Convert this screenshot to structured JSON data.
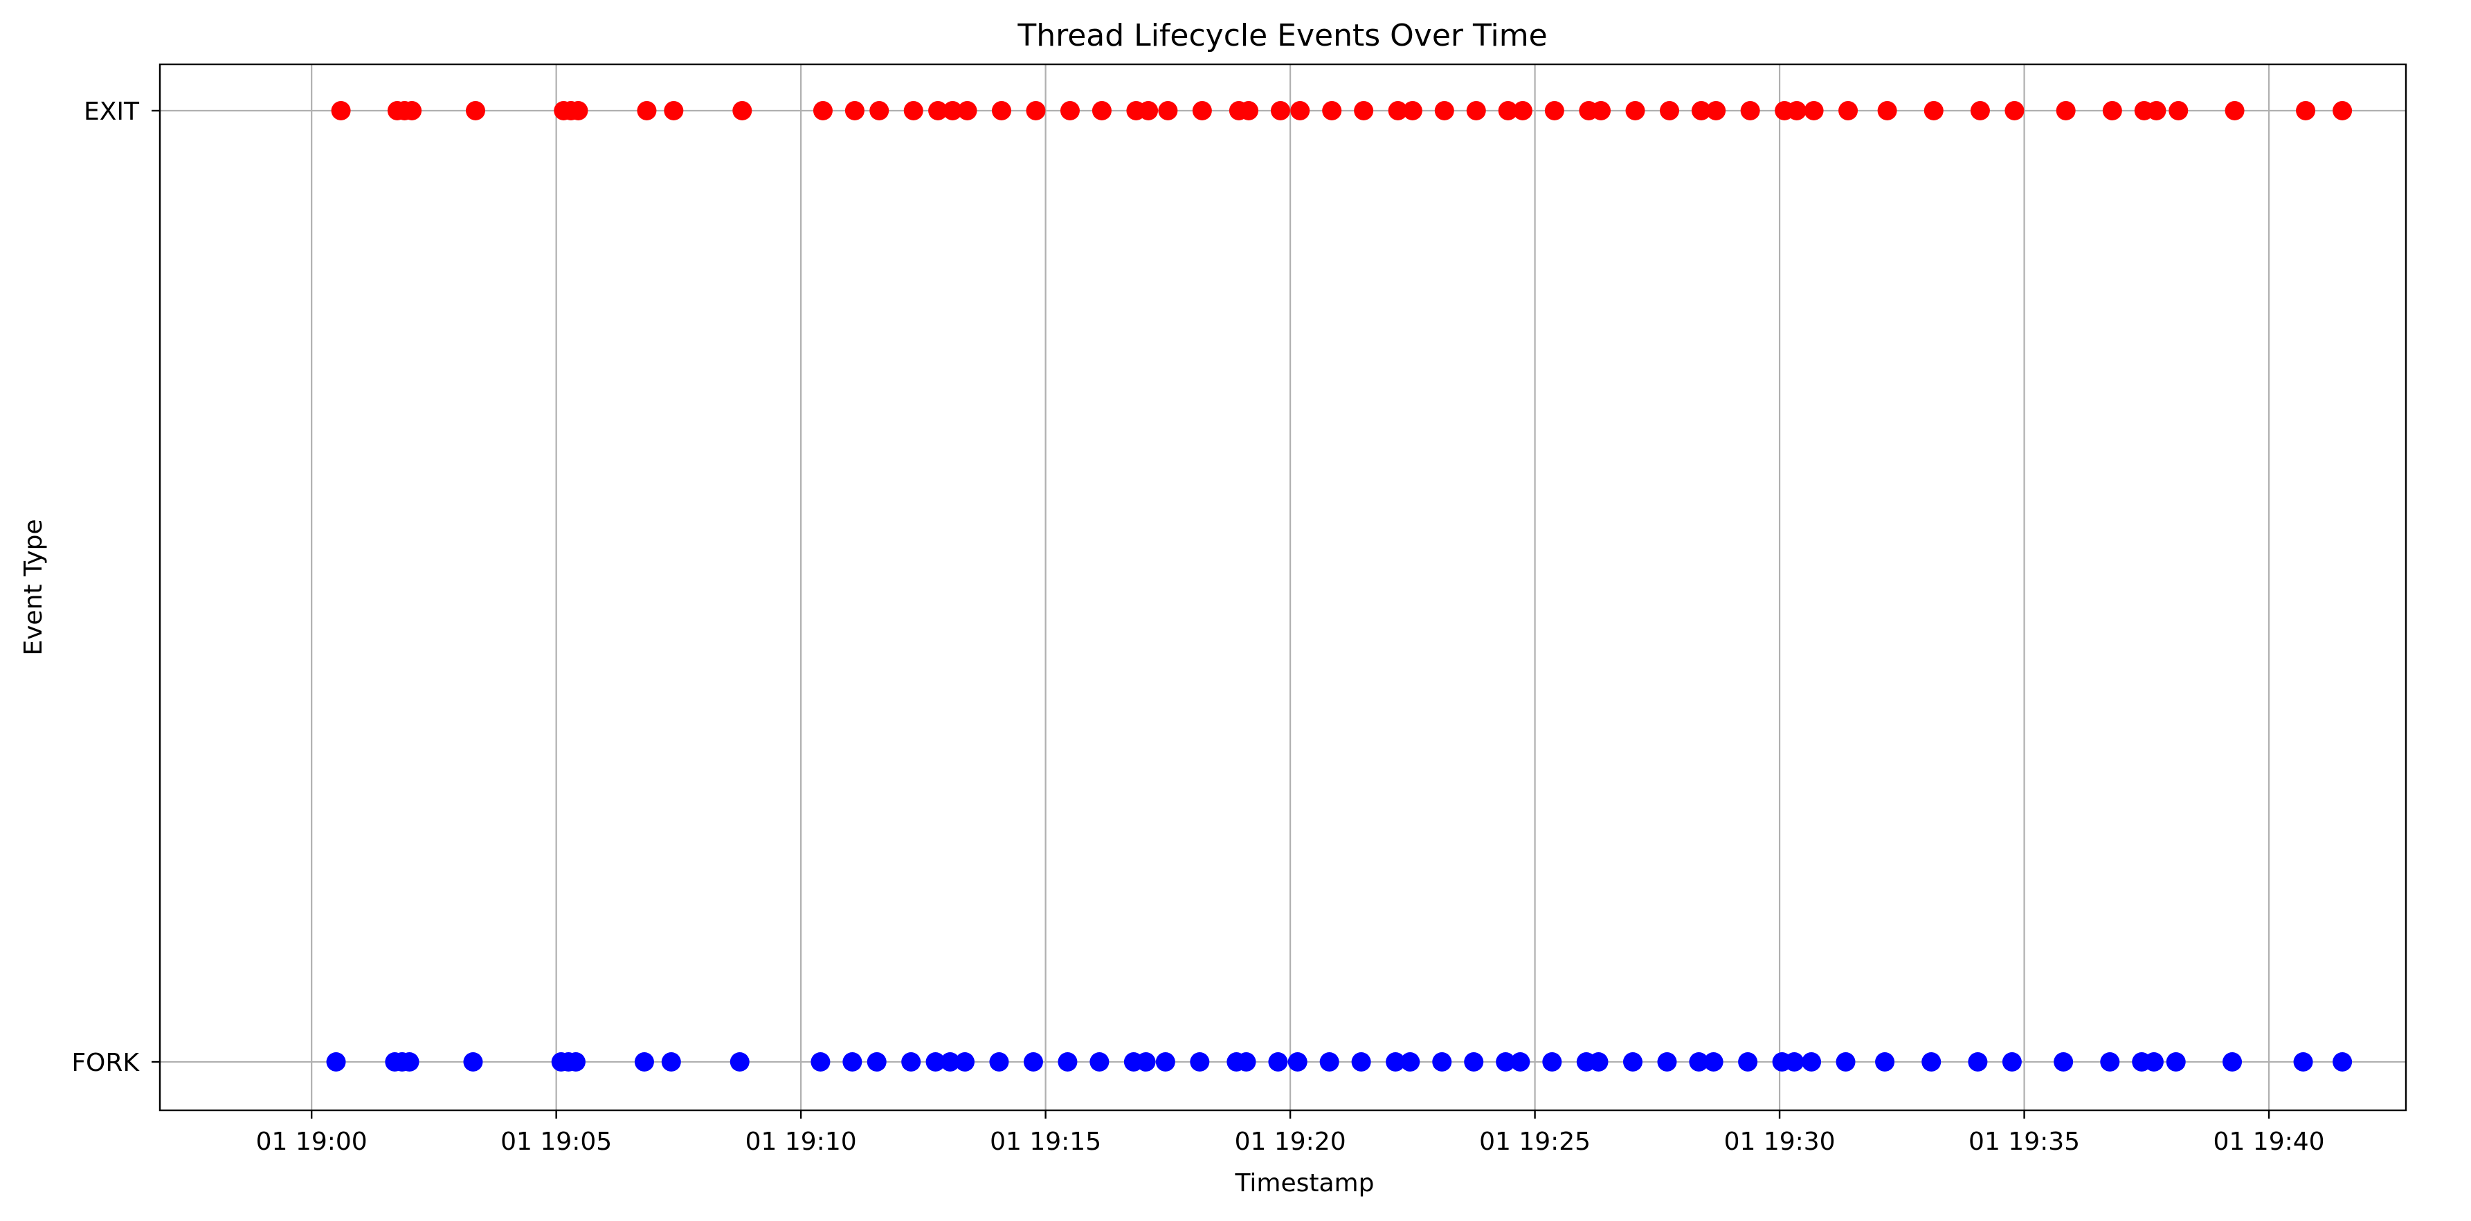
{
  "chart_data": {
    "type": "scatter",
    "title": "Thread Lifecycle Events Over Time",
    "xlabel": "Timestamp",
    "ylabel": "Event Type",
    "x_type": "time",
    "xlim": [
      "19:58:00",
      "20:08:00"
    ],
    "x_ticks": [
      "01 19:00",
      "01 19:05",
      "01 19:10",
      "01 19:15",
      "01 19:20",
      "01 19:25",
      "01 19:30",
      "01 19:35",
      "01 19:40"
    ],
    "y_categories": [
      "FORK",
      "EXIT"
    ],
    "grid": true,
    "series": [
      {
        "category": "EXIT",
        "color": "#ff0000",
        "x": [
          "19:00:36",
          "19:01:45",
          "19:01:54",
          "19:02:03",
          "19:03:21",
          "19:05:09",
          "19:05:18",
          "19:05:27",
          "19:06:51",
          "19:07:24",
          "19:08:48",
          "19:10:27",
          "19:11:06",
          "19:11:36",
          "19:12:18",
          "19:12:48",
          "19:13:06",
          "19:13:24",
          "19:14:06",
          "19:14:48",
          "19:15:30",
          "19:16:09",
          "19:16:51",
          "19:17:06",
          "19:17:30",
          "19:18:12",
          "19:18:57",
          "19:19:09",
          "19:19:48",
          "19:20:12",
          "19:20:51",
          "19:21:30",
          "19:22:12",
          "19:22:30",
          "19:23:09",
          "19:23:48",
          "19:24:27",
          "19:24:45",
          "19:25:24",
          "19:26:06",
          "19:26:21",
          "19:27:03",
          "19:27:45",
          "19:28:24",
          "19:28:42",
          "19:29:24",
          "19:30:06",
          "19:30:21",
          "19:30:42",
          "19:31:24",
          "19:32:12",
          "19:33:09",
          "19:34:06",
          "19:34:48",
          "19:35:51",
          "19:36:48",
          "19:37:27",
          "19:37:42",
          "19:38:09",
          "19:39:18",
          "19:40:45",
          "19:41:30"
        ]
      },
      {
        "category": "FORK",
        "color": "#0000ff",
        "x": [
          "19:00:30",
          "19:01:42",
          "19:01:51",
          "19:02:00",
          "19:03:18",
          "19:05:06",
          "19:05:15",
          "19:05:24",
          "19:06:48",
          "19:07:21",
          "19:08:45",
          "19:10:24",
          "19:11:03",
          "19:11:33",
          "19:12:15",
          "19:12:45",
          "19:13:03",
          "19:13:21",
          "19:14:03",
          "19:14:45",
          "19:15:27",
          "19:16:06",
          "19:16:48",
          "19:17:03",
          "19:17:27",
          "19:18:09",
          "19:18:54",
          "19:19:06",
          "19:19:45",
          "19:20:09",
          "19:20:48",
          "19:21:27",
          "19:22:09",
          "19:22:27",
          "19:23:06",
          "19:23:45",
          "19:24:24",
          "19:24:42",
          "19:25:21",
          "19:26:03",
          "19:26:18",
          "19:27:00",
          "19:27:42",
          "19:28:21",
          "19:28:39",
          "19:29:21",
          "19:30:03",
          "19:30:18",
          "19:30:39",
          "19:31:21",
          "19:32:09",
          "19:33:06",
          "19:34:03",
          "19:34:45",
          "19:35:48",
          "19:36:45",
          "19:37:24",
          "19:37:39",
          "19:38:06",
          "19:39:15",
          "19:40:42",
          "19:41:30"
        ]
      }
    ]
  }
}
